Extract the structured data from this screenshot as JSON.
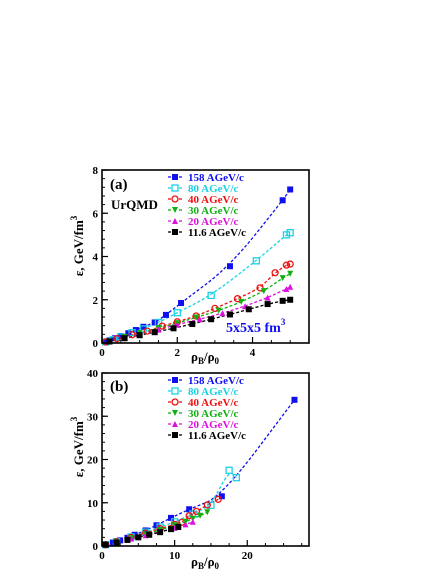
{
  "chart_data": [
    {
      "type": "scatter",
      "panel_label": "(a)",
      "annotations": [
        "UrQMD",
        "5x5x5 fm"
      ],
      "annotation_superscript": "3",
      "xlabel": "ρ_B/ρ_0",
      "ylabel": "ε, GeV/fm",
      "ylabel_superscript": "3",
      "xlim": [
        0,
        5.5
      ],
      "ylim": [
        0,
        8
      ],
      "xticks": [
        0,
        2,
        4
      ],
      "yticks": [
        0,
        2,
        4,
        6,
        8
      ],
      "legend_position": "top-left",
      "series": [
        {
          "name": "158 AGeV/c",
          "color": "#1010ee",
          "marker": "square-filled",
          "x": [
            0.1,
            0.2,
            0.35,
            0.5,
            0.7,
            0.9,
            1.1,
            1.4,
            1.7,
            2.1,
            3.4,
            4.8,
            5.0
          ],
          "y": [
            0.06,
            0.12,
            0.22,
            0.32,
            0.45,
            0.6,
            0.75,
            0.95,
            1.3,
            1.85,
            3.55,
            6.6,
            7.1
          ]
        },
        {
          "name": "80 AGeV/c",
          "color": "#19d2e6",
          "marker": "square-open",
          "x": [
            0.1,
            0.3,
            0.5,
            0.8,
            1.1,
            1.5,
            2.0,
            2.9,
            4.1,
            4.9,
            5.0
          ],
          "y": [
            0.05,
            0.15,
            0.28,
            0.48,
            0.65,
            0.95,
            1.4,
            2.2,
            3.8,
            5.0,
            5.1
          ]
        },
        {
          "name": "40 AGeV/c",
          "color": "#ee1010",
          "marker": "circle-open",
          "x": [
            0.1,
            0.4,
            0.8,
            1.2,
            1.6,
            2.0,
            2.5,
            3.0,
            3.6,
            4.2,
            4.6,
            4.9,
            5.0
          ],
          "y": [
            0.05,
            0.2,
            0.38,
            0.55,
            0.78,
            0.98,
            1.25,
            1.6,
            2.05,
            2.55,
            3.25,
            3.6,
            3.65
          ]
        },
        {
          "name": "30 AGeV/c",
          "color": "#11b011",
          "marker": "triangle-down-filled",
          "x": [
            0.2,
            0.6,
            1.0,
            1.5,
            2.0,
            2.5,
            3.1,
            3.7,
            4.3,
            4.8,
            5.0
          ],
          "y": [
            0.08,
            0.28,
            0.46,
            0.68,
            0.92,
            1.18,
            1.5,
            1.9,
            2.4,
            3.0,
            3.2
          ]
        },
        {
          "name": "20 AGeV/c",
          "color": "#dd11dd",
          "marker": "triangle-up-filled",
          "x": [
            0.2,
            0.6,
            1.0,
            1.5,
            2.0,
            2.6,
            3.2,
            3.8,
            4.4,
            4.9,
            5.0
          ],
          "y": [
            0.08,
            0.25,
            0.42,
            0.62,
            0.85,
            1.1,
            1.38,
            1.7,
            2.1,
            2.5,
            2.6
          ]
        },
        {
          "name": "11.6 AGeV/c",
          "color": "#000000",
          "marker": "square-filled",
          "x": [
            0.2,
            0.6,
            1.0,
            1.4,
            1.9,
            2.4,
            2.9,
            3.4,
            3.9,
            4.4,
            4.8,
            5.0
          ],
          "y": [
            0.07,
            0.22,
            0.36,
            0.5,
            0.68,
            0.88,
            1.1,
            1.32,
            1.56,
            1.8,
            1.95,
            2.0
          ]
        }
      ]
    },
    {
      "type": "scatter",
      "panel_label": "(b)",
      "xlabel": "ρ_B/ρ_0",
      "ylabel": "ε, GeV/fm",
      "ylabel_superscript": "3",
      "xlim": [
        0,
        28.5
      ],
      "ylim": [
        0,
        40
      ],
      "xticks": [
        0,
        10,
        20
      ],
      "yticks": [
        0,
        10,
        20,
        30,
        40
      ],
      "legend_position": "top-left",
      "series": [
        {
          "name": "158 AGeV/c",
          "color": "#1010ee",
          "marker": "square-filled",
          "x": [
            0.5,
            1.5,
            2.5,
            3.5,
            4.5,
            6.0,
            7.5,
            9.5,
            12.0,
            16.5,
            26.5
          ],
          "y": [
            0.3,
            0.8,
            1.3,
            1.9,
            2.6,
            3.6,
            4.8,
            6.5,
            8.5,
            11.5,
            33.8
          ]
        },
        {
          "name": "80 AGeV/c",
          "color": "#19d2e6",
          "marker": "square-open",
          "x": [
            0.5,
            2.0,
            4.0,
            6.0,
            8.0,
            10.0,
            12.5,
            15.0,
            17.5,
            18.5
          ],
          "y": [
            0.3,
            1.0,
            2.1,
            3.2,
            4.4,
            5.6,
            7.4,
            9.4,
            17.5,
            15.8
          ]
        },
        {
          "name": "40 AGeV/c",
          "color": "#ee1010",
          "marker": "circle-open",
          "x": [
            0.5,
            2.0,
            4.0,
            6.0,
            8.0,
            10.0,
            11.0,
            12.0,
            13.0,
            14.5,
            16.0
          ],
          "y": [
            0.3,
            1.0,
            2.0,
            3.0,
            4.0,
            5.0,
            5.5,
            7.0,
            8.0,
            9.5,
            10.8
          ]
        },
        {
          "name": "30 AGeV/c",
          "color": "#11b011",
          "marker": "triangle-down-filled",
          "x": [
            0.5,
            2.0,
            4.0,
            6.0,
            8.0,
            10.0,
            11.5,
            12.5,
            13.5,
            14.5
          ],
          "y": [
            0.3,
            0.9,
            1.8,
            2.7,
            3.7,
            4.8,
            5.6,
            6.3,
            7.0,
            7.8
          ]
        },
        {
          "name": "20 AGeV/c",
          "color": "#dd11dd",
          "marker": "triangle-up-filled",
          "x": [
            0.5,
            2.0,
            4.0,
            6.0,
            8.0,
            10.0,
            11.5,
            12.5
          ],
          "y": [
            0.3,
            0.9,
            1.7,
            2.5,
            3.3,
            4.2,
            5.0,
            5.6
          ]
        },
        {
          "name": "11.6 AGeV/c",
          "color": "#000000",
          "marker": "square-filled",
          "x": [
            0.5,
            2.0,
            3.5,
            5.0,
            6.5,
            8.0,
            9.5,
            10.5
          ],
          "y": [
            0.3,
            0.8,
            1.4,
            2.0,
            2.6,
            3.2,
            3.9,
            4.4
          ]
        }
      ]
    }
  ]
}
